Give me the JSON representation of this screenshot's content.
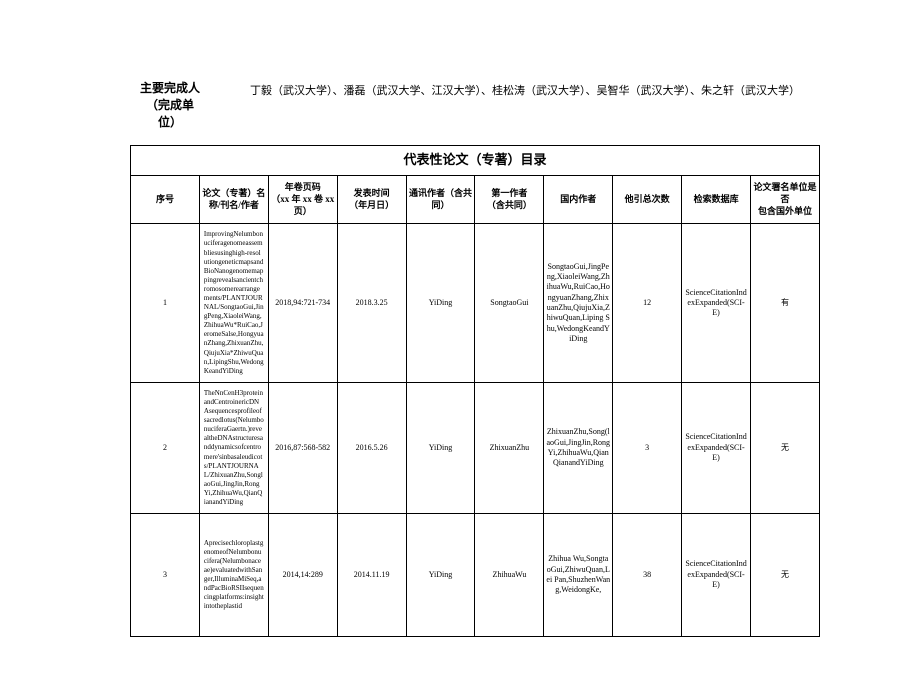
{
  "header": {
    "label_line1": "主要完成人",
    "label_line2": "（完成单",
    "label_line3": "位）",
    "content": "丁毅（武汉大学）、潘磊（武汉大学、江汉大学）、桂松涛（武汉大学）、吴智华（武汉大学）、朱之轩（武汉大学）"
  },
  "table": {
    "title": "代表性论文（专著）目录",
    "columns": {
      "seq": "序号",
      "title": "论文（专著）名称/刊名/作者",
      "vol_line1": "年卷页码",
      "vol_line2": "（xx 年 xx 卷 xx 页）",
      "date_line1": "发表时间",
      "date_line2": "（年月日）",
      "corr_line1": "通讯作者（含共",
      "corr_line2": "同）",
      "first_line1": "第一作者",
      "first_line2": "（含共同）",
      "domestic": "国内作者",
      "citations": "他引总次数",
      "database": "检索数据库",
      "foreign_line1": "论文署名单位是否",
      "foreign_line2": "包含国外单位"
    },
    "rows": [
      {
        "seq": "1",
        "title": "ImprovingNelumbonuciferagenomeassembliesusinghigh-resolutiongeneticmapsandBioNanogenomemappingrevealsancientchromosomerearrangements/PLANTJOURNAL/SongtaoGui,JingPeng,XiaoleiWang,ZhihuaWu*RuiCao,JeromeSalse,HongyuanZhang,ZhixuanZhu,QiujuXia*ZhiwuQuan,LipingShu,WedongKeandYiDing",
        "vol": "2018,94:721-734",
        "date": "2018.3.25",
        "corr": "YiDing",
        "first": "SongtaoGui",
        "domestic": "SongtaoGui,JingPeng,XiaoleiWang,ZhihuaWu,RuiCao,HongyuanZhang,ZhixuanZhu,QiujuXia,ZhiwuQuan,Liping  Shu,WedongKeandYiDing",
        "citations": "12",
        "database": "ScienceCitationIndexExpanded(SCI-E)",
        "foreign": "有"
      },
      {
        "seq": "2",
        "title": "TheNnCenH3proteinandCentroinericDNAsequencesprofileofsacredlotus(NelumbonuciferaGaertn.)revealtheDNAstructuresanddynamicsofcentromere'sinbasaleudicots/PLANTJOURNAL/ZhixuanZhu,SonglaoGui,JingJin,RongYi,ZhihuaWu,QianQianandYiDing",
        "vol": "2016,87:568-582",
        "date": "2016.5.26",
        "corr": "YiDing",
        "first": "ZhixuanZhu",
        "domestic": "ZhixuanZhu,Song(laoGui,JingJin,RongYi,ZhihuaWu,QianQianandYiDing",
        "citations": "3",
        "database": "ScienceCitationIndexExpanded(SCI-E)",
        "foreign": "无"
      },
      {
        "seq": "3",
        "title": "AprecisechloroplastgenomeofNelumbonucifera(Nelumbonaceae)evaluatedwithSanger,IlluminaMiSeq,andPacBioRSIIsequencingplatforms:insightintotheplastid",
        "vol": "2014,14:289",
        "date": "2014.11.19",
        "corr": "YiDing",
        "first": "ZhihuaWu",
        "domestic": "Zhihua   Wu,SongtaoGui,ZhiwuQuan,Lei   Pan,ShuzhenWang,WeidongKe,",
        "citations": "38",
        "database": "ScienceCitationIndexExpanded(SCI-E)",
        "foreign": "无"
      }
    ]
  }
}
